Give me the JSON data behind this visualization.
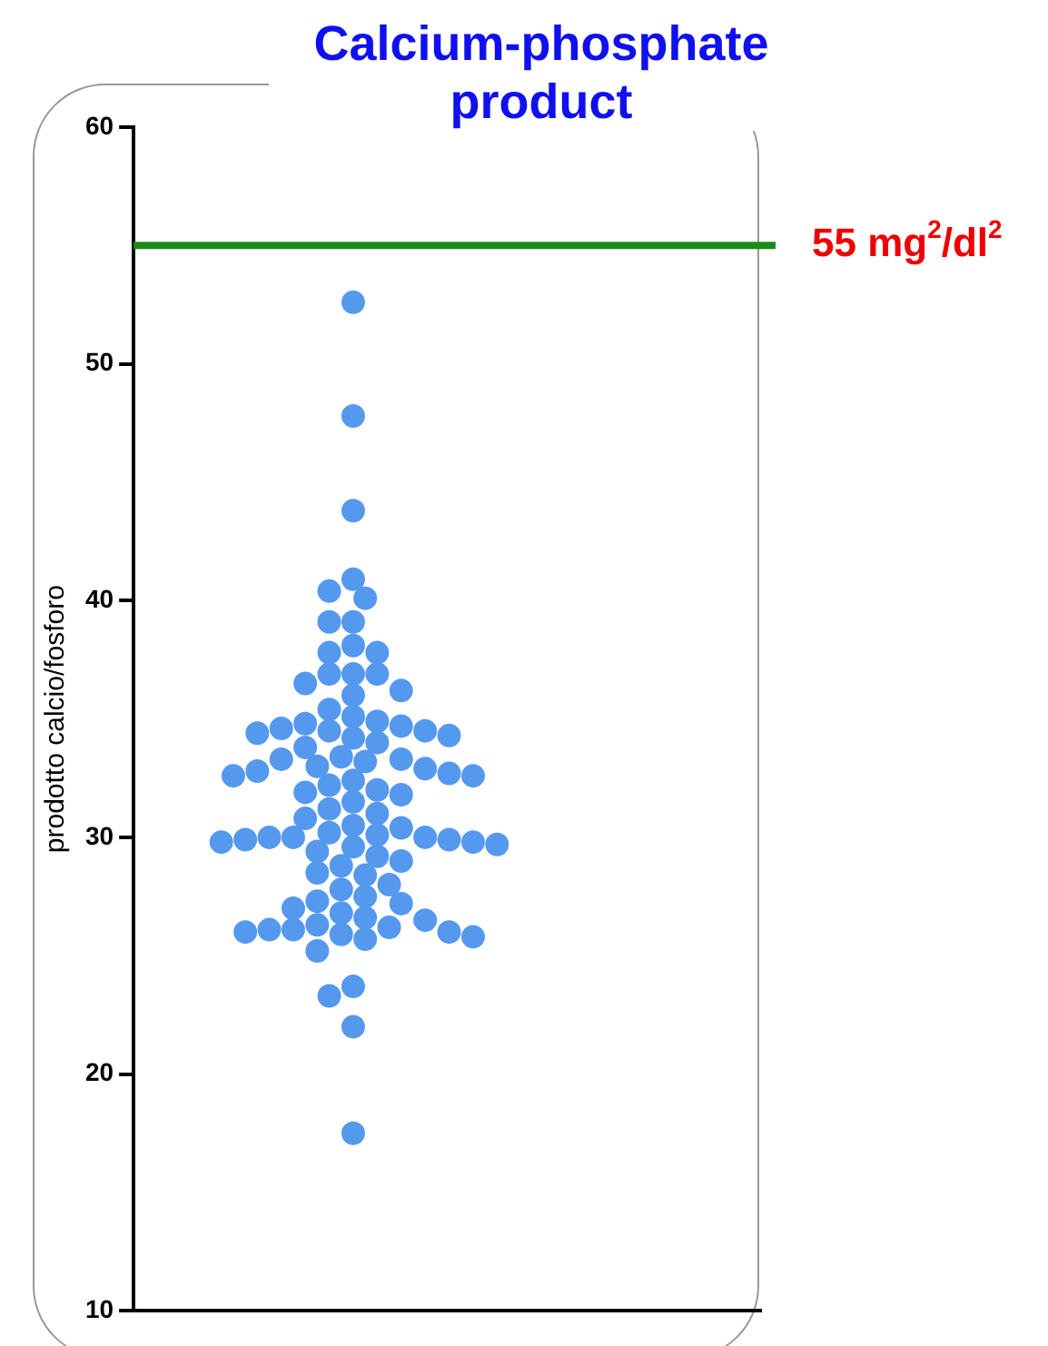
{
  "chart_data": {
    "type": "scatter",
    "title": "Calcium-phosphate product",
    "ylabel": "prodotto calcio/fosforo",
    "categories": [
      null
    ],
    "series": [
      {
        "color": "#5599ee",
        "x": [
          null,
          null,
          null,
          null,
          null,
          null,
          null,
          null,
          null,
          null,
          null,
          null,
          null,
          null,
          null,
          null,
          null,
          null,
          null,
          null,
          null,
          null,
          null,
          null,
          null,
          null,
          null,
          null,
          null,
          null,
          null,
          null,
          null,
          null,
          null,
          null,
          null,
          null,
          null,
          null,
          null,
          null,
          null,
          null,
          null,
          null,
          null,
          null,
          null,
          null,
          null,
          null,
          null,
          null,
          null,
          null,
          null,
          null,
          null,
          null,
          null,
          null,
          null,
          null,
          null,
          null,
          null,
          null,
          null,
          null,
          null,
          null,
          null,
          null,
          null,
          null,
          null,
          null,
          null,
          null,
          null,
          null,
          null,
          null,
          null,
          null,
          null,
          null,
          null,
          null,
          null
        ],
        "values": [
          52.6,
          47.8,
          43.8,
          40.9,
          40.4,
          40.1,
          39.1,
          39.1,
          38.1,
          37.8,
          37.8,
          36.9,
          36.9,
          36.9,
          36.5,
          36.2,
          36.0,
          35.4,
          35.1,
          34.9,
          34.8,
          34.7,
          34.6,
          34.5,
          34.5,
          34.4,
          34.3,
          34.2,
          34.0,
          33.8,
          33.4,
          33.3,
          33.3,
          33.2,
          33.0,
          32.9,
          32.8,
          32.7,
          32.6,
          32.6,
          32.4,
          32.2,
          32.0,
          31.9,
          31.8,
          31.5,
          31.2,
          31.0,
          30.8,
          30.5,
          30.4,
          30.2,
          30.1,
          30.0,
          30.0,
          30.0,
          29.9,
          29.9,
          29.8,
          29.8,
          29.7,
          29.6,
          29.4,
          29.2,
          29.0,
          28.8,
          28.5,
          28.4,
          28.0,
          27.8,
          27.5,
          27.3,
          27.2,
          27.0,
          26.8,
          26.6,
          26.5,
          26.3,
          26.2,
          26.1,
          26.1,
          26.0,
          26.0,
          25.9,
          25.8,
          25.7,
          25.2,
          23.7,
          23.3,
          22.0,
          17.5
        ]
      }
    ],
    "ylim": [
      10,
      60
    ],
    "yticks": [
      10,
      20,
      30,
      40,
      50,
      60
    ],
    "grid": false,
    "legend": false,
    "tick_labels": "y",
    "marker": "circle",
    "ref_lines": [
      {
        "axis": "y",
        "value": 55,
        "label": "55 mg$^{2}$/dl$^{2}$",
        "color": "#1a8a1a"
      }
    ]
  }
}
